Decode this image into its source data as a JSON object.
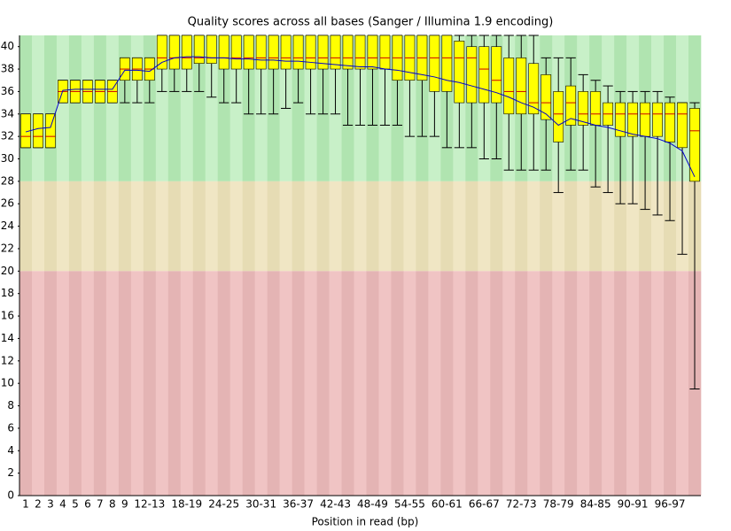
{
  "chart_data": {
    "type": "box",
    "title": "Quality scores across all bases (Sanger / Illumina 1.9 encoding)",
    "x_label": "Position in read (bp)",
    "categories": [
      "1",
      "2",
      "3",
      "4",
      "5",
      "6",
      "7",
      "8",
      "9",
      null,
      "12-13",
      null,
      null,
      "18-19",
      null,
      null,
      "24-25",
      null,
      null,
      "30-31",
      null,
      null,
      "36-37",
      null,
      null,
      "42-43",
      null,
      null,
      "48-49",
      null,
      null,
      "54-55",
      null,
      null,
      "60-61",
      null,
      null,
      "66-67",
      null,
      null,
      "72-73",
      null,
      null,
      "78-79",
      null,
      null,
      "84-85",
      null,
      null,
      "90-91",
      null,
      null,
      "96-97",
      null,
      null
    ],
    "ylim": [
      0,
      41
    ],
    "yticks": [
      0,
      2,
      4,
      6,
      8,
      10,
      12,
      14,
      16,
      18,
      20,
      22,
      24,
      26,
      28,
      30,
      32,
      34,
      36,
      38,
      40
    ],
    "box_color": "#ffff00",
    "median_color": "#cc0000",
    "mean_color": "#0000cc",
    "low": [
      31,
      31,
      31,
      35,
      35,
      35,
      35,
      35,
      35,
      35,
      35,
      36,
      36,
      36,
      36,
      35.5,
      35,
      35,
      34,
      34,
      34,
      34.5,
      35,
      34,
      34,
      34,
      33,
      33,
      33,
      33,
      33,
      32,
      32,
      32,
      31,
      31,
      31,
      30,
      30,
      29,
      29,
      29,
      29,
      27,
      29,
      29,
      27.5,
      27,
      26,
      26,
      25.5,
      25,
      24.5,
      21.5,
      9.5
    ],
    "q1": [
      31,
      31,
      31,
      35,
      35,
      35,
      35,
      35,
      37,
      37,
      37,
      38,
      38,
      38,
      38.5,
      38.5,
      38,
      38,
      38,
      38,
      38,
      38,
      38,
      38,
      38,
      38,
      38,
      38,
      38,
      38,
      37,
      37,
      37,
      36,
      36,
      35,
      35,
      35,
      35,
      34,
      34,
      34,
      33.5,
      31.5,
      33,
      33,
      33,
      33,
      32,
      32,
      32,
      32,
      31.5,
      31,
      28
    ],
    "median": [
      32,
      32,
      32,
      36,
      36,
      36,
      36,
      36,
      38,
      38,
      38,
      39,
      39,
      39,
      39,
      39,
      39,
      39,
      39,
      39,
      39,
      39,
      39,
      39,
      39,
      39,
      39,
      39,
      39,
      39,
      39,
      39,
      39,
      39,
      39,
      39,
      39,
      38,
      37,
      36,
      36,
      35,
      35,
      34,
      35,
      34,
      34,
      34,
      34,
      34,
      34,
      34,
      34,
      34,
      32.5
    ],
    "q3": [
      34,
      34,
      34,
      37,
      37,
      37,
      37,
      37,
      39,
      39,
      39,
      41,
      41,
      41,
      41,
      41,
      41,
      41,
      41,
      41,
      41,
      41,
      41,
      41,
      41,
      41,
      41,
      41,
      41,
      41,
      41,
      41,
      41,
      41,
      41,
      40.5,
      40,
      40,
      40,
      39,
      39,
      38.5,
      37.5,
      36,
      36.5,
      36,
      36,
      35,
      35,
      35,
      35,
      35,
      35,
      35,
      34.5
    ],
    "high": [
      34,
      34,
      34,
      37,
      37,
      37,
      37,
      37,
      39,
      39,
      39,
      41,
      41,
      41,
      41,
      41,
      41,
      41,
      41,
      41,
      41,
      41,
      41,
      41,
      41,
      41,
      41,
      41,
      41,
      41,
      41,
      41,
      41,
      41,
      41,
      41,
      41,
      41,
      41,
      41,
      41,
      41,
      39,
      39,
      39,
      37.5,
      37,
      36.5,
      36,
      36,
      36,
      36,
      35.5,
      35,
      35
    ],
    "mean": [
      32.4,
      32.7,
      32.8,
      36.1,
      36.2,
      36.2,
      36.2,
      36.2,
      37.9,
      37.9,
      37.8,
      38.6,
      39.0,
      39.1,
      39.1,
      39.0,
      39.0,
      38.9,
      38.9,
      38.8,
      38.8,
      38.7,
      38.7,
      38.6,
      38.5,
      38.4,
      38.3,
      38.2,
      38.2,
      38.0,
      37.9,
      37.7,
      37.5,
      37.3,
      37.0,
      36.8,
      36.5,
      36.2,
      35.9,
      35.5,
      35.0,
      34.6,
      34.0,
      33.0,
      33.6,
      33.3,
      33.0,
      32.8,
      32.5,
      32.2,
      32.0,
      31.8,
      31.4,
      30.7,
      28.4
    ]
  }
}
